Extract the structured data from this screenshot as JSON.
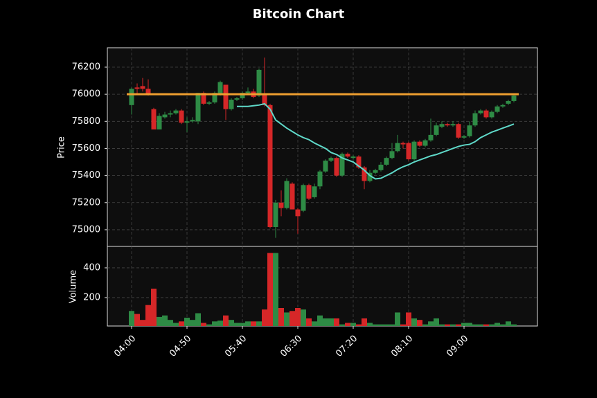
{
  "chart_data": {
    "type": "candlestick",
    "title": "Bitcoin Chart",
    "y_label": "Price",
    "volume_label": "Volume",
    "categories": [
      "04:00",
      "04:05",
      "04:10",
      "04:15",
      "04:20",
      "04:25",
      "04:30",
      "04:35",
      "04:40",
      "04:45",
      "04:50",
      "04:55",
      "05:00",
      "05:05",
      "05:10",
      "05:15",
      "05:20",
      "05:25",
      "05:30",
      "05:35",
      "05:40",
      "05:45",
      "05:50",
      "05:55",
      "06:00",
      "06:05",
      "06:10",
      "06:15",
      "06:20",
      "06:25",
      "06:30",
      "06:35",
      "06:40",
      "06:45",
      "06:50",
      "06:55",
      "07:00",
      "07:05",
      "07:10",
      "07:15",
      "07:20",
      "07:25",
      "07:30",
      "07:35",
      "07:40",
      "07:45",
      "07:50",
      "07:55",
      "08:00",
      "08:05",
      "08:10",
      "08:15",
      "08:20",
      "08:25",
      "08:30",
      "08:35",
      "08:40",
      "08:45",
      "08:50",
      "08:55",
      "09:00",
      "09:05",
      "09:10",
      "09:15",
      "09:20",
      "09:25",
      "09:30",
      "09:35",
      "09:40",
      "09:45"
    ],
    "open": [
      75920,
      76050,
      76060,
      76040,
      75890,
      75740,
      75830,
      75850,
      75860,
      75880,
      75790,
      75800,
      75800,
      76010,
      75930,
      75940,
      76000,
      76070,
      75890,
      75960,
      75970,
      76010,
      76020,
      75990,
      76000,
      75920,
      75020,
      75200,
      75160,
      75340,
      75150,
      75140,
      75330,
      75240,
      75320,
      75430,
      75510,
      75530,
      75400,
      75560,
      75530,
      75540,
      75460,
      75360,
      75420,
      75440,
      75480,
      75530,
      75580,
      75640,
      75640,
      75520,
      75650,
      75620,
      75660,
      75700,
      75760,
      75780,
      75770,
      75780,
      75680,
      75690,
      75770,
      75860,
      75880,
      75830,
      75870,
      75910,
      75930,
      75950
    ],
    "high": [
      76050,
      76080,
      76120,
      76110,
      75900,
      75860,
      75870,
      75880,
      75890,
      75890,
      75830,
      75830,
      76010,
      76020,
      75950,
      76020,
      76100,
      76070,
      75970,
      75980,
      76020,
      76050,
      76040,
      76190,
      76270,
      75930,
      75220,
      75290,
      75380,
      75350,
      75160,
      75340,
      75340,
      75340,
      75440,
      75520,
      75540,
      75540,
      75570,
      75570,
      75550,
      75550,
      75470,
      75440,
      75450,
      75500,
      75540,
      75640,
      75700,
      75650,
      75650,
      75660,
      75660,
      75670,
      75820,
      75790,
      75800,
      75790,
      75800,
      75790,
      75700,
      75800,
      75880,
      75890,
      75890,
      75880,
      75920,
      75930,
      75960,
      76000
    ],
    "low": [
      75850,
      76000,
      76020,
      75990,
      75740,
      75740,
      75820,
      75830,
      75850,
      75780,
      75720,
      75790,
      75780,
      75920,
      75920,
      75930,
      75990,
      75810,
      75880,
      75950,
      75960,
      76000,
      75970,
      75980,
      75910,
      75010,
      74940,
      75100,
      75150,
      75150,
      74970,
      75130,
      75220,
      75230,
      75300,
      75420,
      75500,
      75390,
      75390,
      75530,
      75520,
      75450,
      75300,
      75350,
      75410,
      75430,
      75470,
      75520,
      75570,
      75600,
      75510,
      75510,
      75610,
      75610,
      75650,
      75690,
      75750,
      75760,
      75760,
      75670,
      75670,
      75680,
      75760,
      75850,
      75820,
      75820,
      75860,
      75900,
      75920,
      75940
    ],
    "close": [
      76040,
      76040,
      76040,
      76000,
      75740,
      75840,
      75850,
      75860,
      75880,
      75790,
      75800,
      75810,
      76010,
      75930,
      75940,
      76010,
      76090,
      75890,
      75960,
      75970,
      76010,
      76020,
      75980,
      76180,
      75920,
      75020,
      75200,
      75160,
      75360,
      75150,
      75100,
      75330,
      75230,
      75320,
      75430,
      75510,
      75530,
      75400,
      75560,
      75540,
      75540,
      75460,
      75360,
      75420,
      75440,
      75480,
      75530,
      75580,
      75640,
      75630,
      75520,
      75650,
      75620,
      75660,
      75700,
      75770,
      75780,
      75770,
      75780,
      75680,
      75690,
      75770,
      75860,
      75880,
      75830,
      75870,
      75910,
      75920,
      75950,
      75990
    ],
    "volume": [
      110,
      90,
      50,
      150,
      260,
      70,
      80,
      50,
      30,
      40,
      65,
      50,
      95,
      30,
      20,
      40,
      45,
      80,
      50,
      30,
      30,
      40,
      40,
      40,
      120,
      500,
      500,
      130,
      100,
      110,
      130,
      120,
      60,
      40,
      80,
      60,
      60,
      60,
      20,
      30,
      30,
      20,
      60,
      30,
      20,
      20,
      20,
      20,
      100,
      20,
      100,
      60,
      50,
      20,
      40,
      60,
      20,
      20,
      20,
      20,
      30,
      30,
      20,
      20,
      20,
      20,
      30,
      20,
      40,
      20
    ],
    "moving_average": {
      "color": "#5fd9c9",
      "values": [
        null,
        null,
        null,
        null,
        null,
        null,
        null,
        null,
        null,
        null,
        null,
        null,
        null,
        null,
        null,
        null,
        null,
        null,
        null,
        75910,
        75910,
        75910,
        75915,
        75920,
        75930,
        75890,
        75810,
        75780,
        75750,
        75725,
        75700,
        75680,
        75665,
        75640,
        75620,
        75600,
        75570,
        75555,
        75530,
        75515,
        75500,
        75470,
        75440,
        75400,
        75375,
        75380,
        75400,
        75420,
        75445,
        75465,
        75480,
        75500,
        75515,
        75530,
        75545,
        75555,
        75570,
        75585,
        75600,
        75615,
        75625,
        75630,
        75650,
        75680,
        75700,
        75720,
        75735,
        75750,
        75765,
        75780
      ]
    },
    "hline": {
      "value": 76000,
      "color": "#f0a030"
    },
    "up_color": "#2e8b45",
    "down_color": "#d62728",
    "ylim": [
      74877,
      76343
    ],
    "yticks": [
      75000,
      75200,
      75400,
      75600,
      75800,
      76000,
      76200
    ],
    "volume_ylim": [
      9,
      544
    ],
    "volume_ticks": [
      200,
      400
    ],
    "xticks": [
      "04:00",
      "04:50",
      "05:40",
      "06:30",
      "07:20",
      "08:10",
      "09:00"
    ],
    "grid": true
  }
}
